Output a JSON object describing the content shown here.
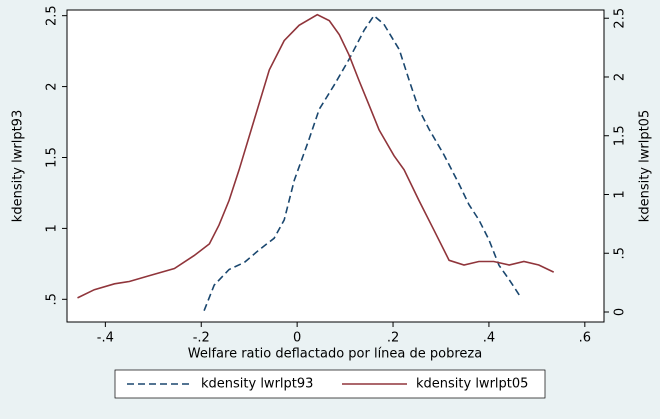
{
  "chart_data": {
    "type": "line",
    "x_label": "Welfare ratio deflactado por línea de pobreza",
    "y_label": "kdensity lwrlpt93",
    "y2_label": "kdensity lwrlpt05",
    "xlim": [
      -0.48,
      0.64
    ],
    "ylim": [
      0.34,
      2.54
    ],
    "y2lim": [
      -0.085,
      2.57
    ],
    "xticks": [
      {
        "value": -0.4,
        "label": "-.4"
      },
      {
        "value": -0.2,
        "label": "-.2"
      },
      0,
      {
        "value": 0.2,
        "label": ".2"
      },
      {
        "value": 0.4,
        "label": ".4"
      },
      {
        "value": 0.6,
        "label": ".6"
      }
    ],
    "yticks": [
      {
        "value": 0.5,
        "label": ".5"
      },
      1,
      1.5,
      2,
      2.5
    ],
    "y2ticks": [
      0,
      {
        "value": 0.5,
        "label": ".5"
      },
      1,
      1.5,
      2,
      2.5
    ],
    "series": [
      {
        "name": "kdensity lwrlpt93",
        "color": "#1a476f",
        "dash": true,
        "axis": "y",
        "x": [
          -0.194,
          -0.173,
          -0.142,
          -0.11,
          -0.079,
          -0.048,
          -0.027,
          -0.006,
          0.025,
          0.046,
          0.077,
          0.108,
          0.14,
          0.16,
          0.181,
          0.213,
          0.233,
          0.254,
          0.275,
          0.306,
          0.338,
          0.358,
          0.379,
          0.4,
          0.421,
          0.442,
          0.467
        ],
        "values": [
          0.42,
          0.6,
          0.71,
          0.76,
          0.85,
          0.93,
          1.06,
          1.34,
          1.63,
          1.84,
          2.01,
          2.19,
          2.4,
          2.5,
          2.44,
          2.26,
          2.05,
          1.84,
          1.7,
          1.52,
          1.31,
          1.17,
          1.06,
          0.92,
          0.74,
          0.64,
          0.51
        ]
      },
      {
        "name": "kdensity lwrlpt05",
        "color": "#90353b",
        "dash": false,
        "axis": "y2",
        "x": [
          -0.458,
          -0.423,
          -0.381,
          -0.35,
          -0.308,
          -0.256,
          -0.215,
          -0.183,
          -0.163,
          -0.142,
          -0.121,
          -0.09,
          -0.058,
          -0.027,
          0.004,
          0.042,
          0.067,
          0.088,
          0.108,
          0.129,
          0.15,
          0.171,
          0.202,
          0.223,
          0.254,
          0.285,
          0.317,
          0.348,
          0.379,
          0.41,
          0.442,
          0.473,
          0.504,
          0.535
        ],
        "values": [
          0.12,
          0.19,
          0.24,
          0.26,
          0.31,
          0.37,
          0.48,
          0.58,
          0.74,
          0.95,
          1.21,
          1.63,
          2.06,
          2.31,
          2.44,
          2.53,
          2.48,
          2.36,
          2.19,
          1.97,
          1.76,
          1.55,
          1.33,
          1.21,
          0.95,
          0.7,
          0.44,
          0.4,
          0.43,
          0.43,
          0.4,
          0.43,
          0.4,
          0.34
        ]
      }
    ]
  }
}
